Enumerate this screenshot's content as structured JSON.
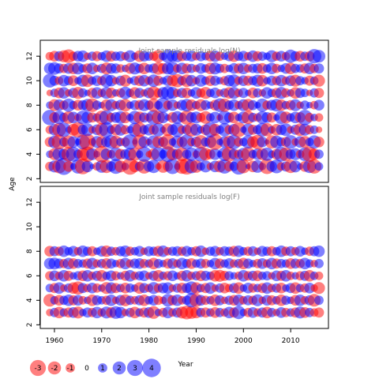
{
  "chart_data": [
    {
      "type": "scatter",
      "subtype": "bubble",
      "title": "Joint sample residuals log(N)",
      "xlabel": "Year",
      "ylabel": "Age",
      "xlim": [
        1957,
        2018
      ],
      "ylim": [
        1.7,
        13.3
      ],
      "xticks": [
        "1960",
        "1970",
        "1980",
        "1990",
        "2000",
        "2010"
      ],
      "yticks": [
        "2",
        "4",
        "6",
        "8",
        "10",
        "12"
      ],
      "x_start": 1959,
      "x_end": 2016,
      "ages": [
        3,
        4,
        5,
        6,
        7,
        8,
        9,
        10,
        11,
        12
      ],
      "residuals": {
        "3": [
          -0.6,
          1.0,
          -1.3,
          2.0,
          -0.8,
          0.3,
          1.4,
          -1.7,
          0.9,
          0.2,
          -0.5,
          1.1,
          -1.2,
          0.7,
          1.5,
          -1.0,
          0.4,
          -1.9,
          -0.9,
          0.6,
          -1.4,
          0.8,
          1.2,
          -0.3,
          -1.1,
          -0.7,
          1.6,
          0.3,
          -1.5,
          -1.8,
          1.3,
          -1.1,
          0.5,
          1.0,
          -0.4,
          0.9,
          -1.0,
          1.4,
          -0.7,
          0.6,
          1.8,
          -1.3,
          0.2,
          -0.9,
          1.1,
          0.4,
          -1.6,
          0.8,
          1.3,
          -0.5,
          0.7,
          -1.2,
          1.0,
          0.3,
          -0.8,
          1.2,
          -1.4,
          0.5
        ],
        "4": [
          0.4,
          -1.0,
          1.2,
          0.8,
          -1.4,
          1.5,
          0.6,
          -1.1,
          -1.6,
          1.0,
          0.3,
          -1.8,
          0.9,
          -0.5,
          1.3,
          -0.8,
          0.7,
          1.1,
          -1.2,
          0.4,
          1.6,
          -0.3,
          -0.9,
          1.4,
          0.5,
          1.7,
          -1.0,
          0.8,
          -1.3,
          0.6,
          1.2,
          -0.4,
          1.5,
          -1.1,
          -0.7,
          0.9,
          0.3,
          1.3,
          -1.5,
          0.8,
          -0.6,
          1.1,
          -1.4,
          0.5,
          0.9,
          -1.0,
          1.2,
          0.4,
          -0.8,
          1.5,
          -1.3,
          0.7,
          1.0,
          -0.5,
          1.3,
          -1.6,
          -0.9,
          0.6
        ],
        "5": [
          -0.7,
          1.1,
          -1.5,
          0.6,
          -1.2,
          0.9,
          0.3,
          1.4,
          -1.8,
          -0.4,
          1.0,
          -0.9,
          0.8,
          1.3,
          -1.1,
          0.5,
          -0.6,
          1.6,
          0.2,
          -1.4,
          0.9,
          -0.3,
          1.2,
          -1.0,
          0.7,
          -1.6,
          0.4,
          1.1,
          -0.8,
          1.5,
          -0.5,
          0.8,
          -1.3,
          0.6,
          1.0,
          -1.7,
          0.3,
          0.9,
          -1.1,
          1.4,
          -0.6,
          0.5,
          1.2,
          -0.9,
          -1.4,
          0.8,
          0.2,
          -1.2,
          1.1,
          0.6,
          -0.7,
          1.3,
          -0.4,
          0.9,
          -1.0,
          0.5,
          1.2,
          -0.8
        ],
        "6": [
          -0.5,
          0.9,
          -1.3,
          1.4,
          0.3,
          -1.0,
          -1.6,
          0.7,
          1.1,
          -0.4,
          0.8,
          -1.2,
          1.5,
          0.5,
          -0.9,
          1.0,
          -0.6,
          0.4,
          1.3,
          -1.4,
          0.6,
          0.9,
          -0.7,
          1.2,
          0.3,
          -1.1,
          0.8,
          1.4,
          -0.5,
          0.7,
          -1.3,
          1.0,
          0.4,
          -0.8,
          1.6,
          -1.0,
          0.5,
          1.2,
          -0.6,
          0.9,
          -1.5,
          0.3,
          1.1,
          -0.7,
          0.6,
          1.3,
          -1.2,
          0.4,
          -0.9,
          0.8,
          1.1,
          -0.4,
          0.7,
          -1.1,
          1.0,
          -0.6,
          0.5,
          -0.3
        ],
        "7": [
          1.6,
          -0.8,
          1.2,
          0.6,
          -1.1,
          0.9,
          -0.4,
          1.3,
          1.0,
          -0.7,
          0.5,
          -1.3,
          1.4,
          -0.6,
          0.8,
          1.1,
          -0.9,
          0.4,
          1.2,
          -1.0,
          0.7,
          -0.5,
          1.5,
          -1.2,
          0.9,
          0.3,
          -0.8,
          1.1,
          0.6,
          -1.4,
          0.8,
          1.0,
          -0.6,
          -1.1,
          0.5,
          0.9,
          -0.3,
          1.3,
          0.7,
          -0.9,
          0.4,
          1.0,
          -1.2,
          0.6,
          -0.5,
          1.1,
          0.8,
          -0.7,
          0.3,
          1.2,
          -1.0,
          0.5,
          0.9,
          -0.8,
          1.6,
          -0.6,
          0.4,
          -0.5
        ],
        "8": [
          0.4,
          -1.0,
          0.9,
          -0.6,
          1.2,
          0.5,
          -0.8,
          0.7,
          1.1,
          -1.3,
          0.6,
          0.3,
          -0.9,
          1.0,
          -0.5,
          0.8,
          -1.1,
          0.4,
          0.7,
          -0.7,
          1.0,
          0.6,
          -1.2,
          0.5,
          1.5,
          -0.6,
          0.9,
          -0.4,
          0.8,
          1.1,
          -0.9,
          0.5,
          -1.0,
          0.7,
          0.4,
          -0.8,
          1.3,
          -1.2,
          0.6,
          0.9,
          -0.5,
          1.0,
          -1.1,
          0.7,
          0.3,
          1.2,
          -0.6,
          0.8,
          1.1,
          -0.9,
          0.5,
          -0.7,
          1.0,
          -0.4,
          0.6,
          0.3,
          -0.5,
          0.8
        ],
        "9": [
          -0.3,
          0.5,
          -0.8,
          0.9,
          -0.4,
          0.7,
          -1.0,
          0.6,
          0.3,
          -0.7,
          0.9,
          -0.5,
          1.0,
          -0.8,
          0.4,
          -0.6,
          1.1,
          0.5,
          -0.9,
          0.7,
          -0.4,
          0.8,
          -1.2,
          -0.6,
          0.9,
          1.3,
          1.0,
          -0.5,
          0.7,
          -0.8,
          0.4,
          0.9,
          -0.6,
          -1.0,
          0.5,
          0.8,
          -0.4,
          0.6,
          -0.9,
          1.0,
          -0.5,
          0.7,
          0.3,
          -0.8,
          0.6,
          -0.4,
          0.9,
          0.5,
          -0.7,
          1.0,
          -0.6,
          0.4,
          -0.9,
          0.7,
          0.5,
          -0.3,
          0.6,
          -0.7
        ],
        "10": [
          1.3,
          0.7,
          -0.5,
          0.9,
          0.6,
          -0.8,
          0.4,
          1.0,
          -1.1,
          0.5,
          0.8,
          -0.6,
          1.2,
          0.9,
          -0.4,
          0.7,
          -1.0,
          0.3,
          0.6,
          -0.8,
          0.9,
          -0.5,
          1.1,
          -0.7,
          0.4,
          0.8,
          -0.9,
          -1.2,
          0.6,
          -1.1,
          0.9,
          -0.4,
          1.0,
          0.5,
          -0.8,
          0.7,
          0.4,
          -0.6,
          0.9,
          1.1,
          -0.5,
          0.8,
          -0.7,
          0.6,
          1.0,
          -0.9,
          0.4,
          0.7,
          -0.6,
          0.9,
          -0.5,
          0.8,
          -1.0,
          0.6,
          0.4,
          -0.7,
          0.5,
          -1.0
        ],
        "11": [
          0.9,
          1.1,
          0.7,
          -0.6,
          0.8,
          -0.9,
          1.0,
          0.5,
          -0.7,
          0.9,
          -0.4,
          0.6,
          -1.0,
          0.8,
          0.7,
          -0.5,
          0.4,
          -0.8,
          1.0,
          0.6,
          -0.9,
          0.5,
          0.7,
          -1.1,
          -0.8,
          1.0,
          1.2,
          -0.5,
          0.9,
          -0.7,
          0.6,
          -0.4,
          0.8,
          0.5,
          -0.9,
          1.0,
          0.6,
          -0.6,
          0.4,
          0.8,
          -0.7,
          0.9,
          -0.5,
          0.6,
          0.7,
          -0.8,
          0.5,
          0.9,
          -0.6,
          0.4,
          0.8,
          -0.9,
          0.6,
          0.5,
          -0.7,
          0.9,
          -0.6,
          0.7
        ],
        "12": [
          -0.5,
          -0.8,
          0.7,
          -1.0,
          -1.3,
          -0.6,
          0.8,
          0.9,
          -0.4,
          0.6,
          -0.7,
          0.5,
          0.9,
          -0.8,
          0.6,
          0.7,
          -0.5,
          1.0,
          0.4,
          -0.9,
          0.8,
          0.6,
          -0.6,
          -1.1,
          0.5,
          1.2,
          0.9,
          1.0,
          -0.7,
          0.6,
          0.8,
          -0.5,
          0.7,
          0.5,
          -0.8,
          0.9,
          -0.6,
          0.4,
          0.7,
          -0.9,
          0.6,
          0.8,
          -0.5,
          0.9,
          -0.7,
          0.6,
          0.4,
          1.0,
          -0.6,
          0.8,
          -0.5,
          1.2,
          0.7,
          -0.8,
          0.6,
          -0.7,
          1.4,
          1.1
        ]
      }
    },
    {
      "type": "scatter",
      "subtype": "bubble",
      "title": "Joint sample residuals log(F)",
      "xlabel": "Year",
      "ylabel": "Age",
      "xlim": [
        1957,
        2018
      ],
      "ylim": [
        1.7,
        13.3
      ],
      "xticks": [
        "1960",
        "1970",
        "1980",
        "1990",
        "2000",
        "2010"
      ],
      "yticks": [
        "2",
        "4",
        "6",
        "8",
        "10",
        "12"
      ],
      "x_start": 1959,
      "x_end": 2016,
      "ages": [
        3,
        4,
        5,
        6,
        7,
        8
      ],
      "residuals": {
        "3": [
          -0.4,
          0.6,
          -0.9,
          0.5,
          -0.7,
          0.8,
          -1.0,
          0.4,
          0.7,
          -0.6,
          0.9,
          -0.5,
          1.0,
          -0.8,
          1.1,
          0.9,
          -0.4,
          0.6,
          -0.9,
          0.5,
          -0.7,
          0.8,
          -1.1,
          0.4,
          -0.6,
          0.9,
          -0.5,
          0.7,
          -1.0,
          -1.3,
          -1.1,
          -0.9,
          0.6,
          -0.7,
          0.5,
          -0.8,
          0.6,
          -0.5,
          0.9,
          -0.7,
          1.2,
          0.4,
          -0.6,
          0.8,
          -0.5,
          0.7,
          -0.9,
          0.6,
          -0.4,
          0.8,
          -0.6,
          0.5,
          -0.7,
          1.0,
          -0.8,
          0.6,
          -0.5,
          -0.7
        ],
        "4": [
          -1.1,
          0.5,
          -0.8,
          0.6,
          0.9,
          -0.7,
          0.8,
          -0.5,
          0.4,
          -0.9,
          0.7,
          0.5,
          -0.6,
          0.9,
          -0.4,
          0.8,
          -1.0,
          0.6,
          -0.5,
          0.7,
          -0.9,
          0.5,
          0.8,
          -0.6,
          -0.4,
          1.1,
          -0.7,
          0.9,
          -0.5,
          0.6,
          1.4,
          -1.2,
          0.8,
          -0.6,
          0.5,
          -0.9,
          0.7,
          -0.4,
          0.6,
          -0.8,
          0.9,
          -0.5,
          0.7,
          -0.6,
          1.0,
          -0.4,
          0.8,
          -0.7,
          0.5,
          -0.9,
          0.6,
          0.4,
          -0.8,
          0.9,
          -0.5,
          0.7,
          -1.1,
          0.6
        ],
        "5": [
          0.5,
          -0.7,
          0.9,
          -0.4,
          0.6,
          -0.9,
          -1.2,
          0.7,
          -0.5,
          0.8,
          -0.6,
          0.4,
          -1.0,
          0.9,
          -0.7,
          0.5,
          -0.8,
          0.6,
          0.4,
          -0.9,
          0.7,
          -0.5,
          1.0,
          -0.6,
          0.8,
          0.9,
          -0.4,
          0.6,
          -0.8,
          0.7,
          1.2,
          -0.9,
          0.5,
          -0.7,
          0.9,
          -0.4,
          0.6,
          -0.8,
          -0.5,
          0.7,
          -0.9,
          0.4,
          0.8,
          -0.6,
          0.5,
          -0.7,
          0.9,
          -0.5,
          0.6,
          -0.8,
          0.4,
          0.7,
          -0.9,
          0.5,
          -0.6,
          0.8,
          -0.4,
          -1.0
        ],
        "6": [
          -0.6,
          0.8,
          -0.5,
          0.9,
          -0.7,
          0.4,
          0.6,
          -0.8,
          0.9,
          -0.5,
          0.7,
          -0.9,
          0.5,
          0.8,
          -0.6,
          0.4,
          -0.7,
          0.9,
          -0.5,
          0.6,
          0.8,
          -0.4,
          0.7,
          -0.9,
          0.5,
          -0.6,
          0.8,
          0.4,
          -0.7,
          0.9,
          -0.5,
          0.6,
          -0.8,
          0.7,
          0.5,
          -0.9,
          -1.0,
          -0.7,
          0.6,
          0.4,
          -0.5,
          0.9,
          -0.6,
          0.7,
          -0.8,
          0.5,
          0.6,
          -0.4,
          0.8,
          -0.7,
          0.9,
          -0.5,
          0.4,
          -0.6,
          0.7,
          -0.9,
          0.5,
          -0.5
        ],
        "7": [
          0.9,
          1.0,
          0.7,
          -0.6,
          0.9,
          -0.8,
          0.6,
          0.5,
          -0.7,
          0.9,
          -0.5,
          0.6,
          -0.8,
          0.7,
          0.4,
          -0.6,
          0.9,
          -0.5,
          0.7,
          0.8,
          -0.6,
          0.5,
          -0.9,
          0.6,
          0.4,
          -0.7,
          0.8,
          -0.5,
          0.9,
          0.6,
          -0.8,
          0.5,
          0.7,
          -0.6,
          0.4,
          0.9,
          -0.7,
          0.5,
          0.8,
          -0.5,
          0.6,
          -0.9,
          0.7,
          0.4,
          -0.6,
          0.8,
          -0.5,
          0.9,
          -0.7,
          0.6,
          0.5,
          -0.8,
          0.7,
          -0.6,
          0.9,
          0.5,
          -0.4,
          0.6
        ],
        "8": [
          -0.8,
          0.7,
          -0.6,
          0.9,
          0.5,
          0.8,
          -0.5,
          0.9,
          0.6,
          -0.7,
          0.4,
          0.8,
          -0.9,
          0.6,
          -0.5,
          0.7,
          0.9,
          -0.6,
          0.5,
          0.8,
          -0.4,
          0.7,
          0.6,
          -0.8,
          0.9,
          -0.5,
          0.6,
          0.7,
          -0.6,
          0.8,
          0.5,
          -0.7,
          0.9,
          -0.4,
          0.6,
          0.8,
          -0.5,
          0.7,
          0.6,
          -0.8,
          0.9,
          0.5,
          -0.6,
          0.7,
          -0.4,
          0.8,
          0.6,
          -0.7,
          0.5,
          0.9,
          -0.6,
          0.7,
          -0.5,
          0.8,
          0.4,
          -0.6,
          0.7,
          0.9
        ]
      }
    }
  ],
  "legend": {
    "items": [
      "-3",
      "-2",
      "-1",
      "0",
      "1",
      "2",
      "3",
      "4"
    ],
    "values": [
      -3,
      -2,
      -1,
      0,
      1,
      2,
      3,
      4
    ]
  },
  "colors": {
    "negative": "#ff0000",
    "positive": "#0000ff",
    "bubble_opacity": 0.5,
    "title": "#808080"
  }
}
